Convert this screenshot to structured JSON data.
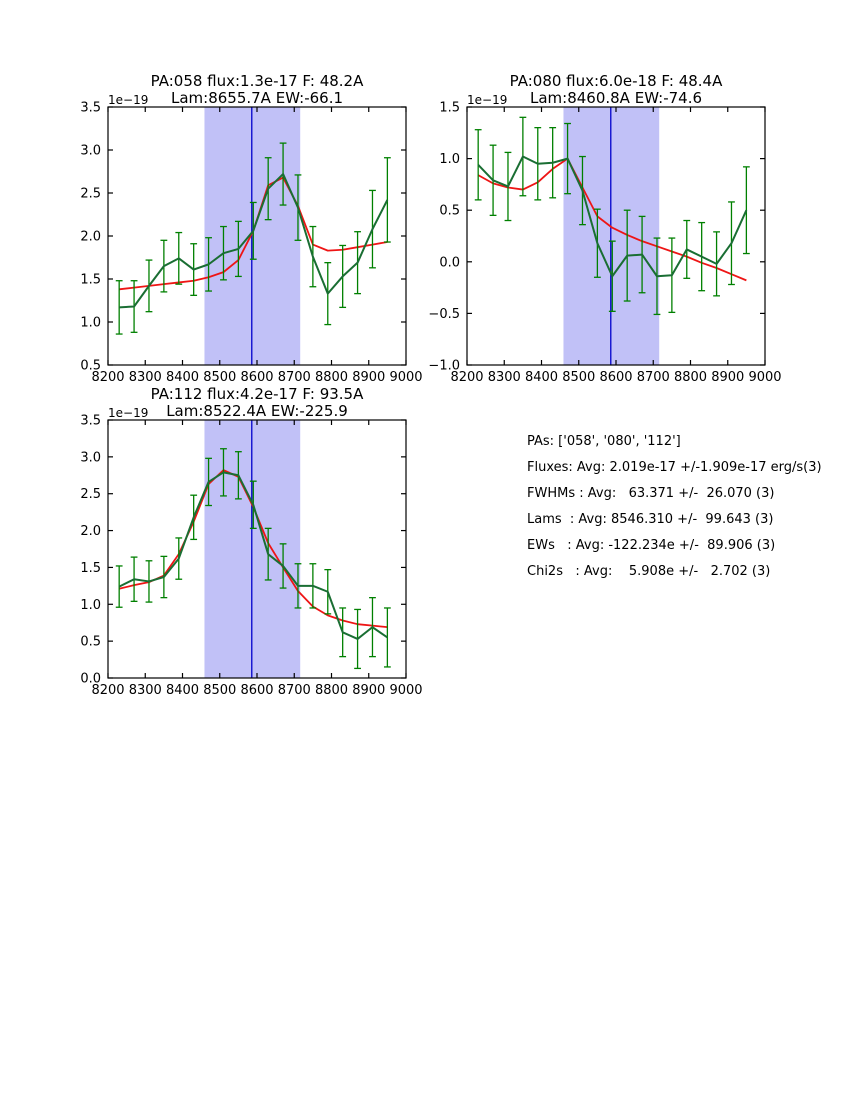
{
  "figure": {
    "background": "#ffffff"
  },
  "colors": {
    "spectrum_line": "#1a6e33",
    "error_bar": "#008000",
    "model_line": "#ee1515",
    "center_line": "#0000cc",
    "band_fill": "#c1c1f7",
    "axis": "#000000"
  },
  "chart_data": [
    {
      "type": "line",
      "title_line1": "PA:058 flux:1.3e-17 F: 48.2A",
      "title_line2": "Lam:8655.7A EW:-66.1",
      "y_offset_label": "1e−19",
      "xlim": [
        8200,
        9000
      ],
      "ylim": [
        0.5,
        3.5
      ],
      "grid": false,
      "legend": "none",
      "xticks": [
        8200,
        8300,
        8400,
        8500,
        8600,
        8700,
        8800,
        8900,
        9000
      ],
      "xtick_labels": [
        "8200",
        "8300",
        "8400",
        "8500",
        "8600",
        "8700",
        "8800",
        "8900",
        "9000"
      ],
      "yticks": [
        0.5,
        1.0,
        1.5,
        2.0,
        2.5,
        3.0,
        3.5
      ],
      "ytick_labels": [
        "0.5",
        "1.0",
        "1.5",
        "2.0",
        "2.5",
        "3.0",
        "3.5"
      ],
      "band_x": [
        8459,
        8716
      ],
      "vline_x": 8586,
      "x": [
        8230,
        8270,
        8310,
        8350,
        8390,
        8430,
        8470,
        8510,
        8550,
        8590,
        8630,
        8670,
        8710,
        8750,
        8790,
        8830,
        8870,
        8910,
        8950
      ],
      "series": [
        {
          "name": "spectrum",
          "color_key": "spectrum_line",
          "values": [
            1.17,
            1.18,
            1.42,
            1.65,
            1.74,
            1.61,
            1.67,
            1.8,
            1.85,
            2.06,
            2.55,
            2.72,
            2.33,
            1.76,
            1.33,
            1.53,
            1.69,
            2.08,
            2.42
          ],
          "yerr": [
            0.31,
            0.3,
            0.3,
            0.3,
            0.3,
            0.3,
            0.31,
            0.31,
            0.32,
            0.33,
            0.36,
            0.36,
            0.38,
            0.35,
            0.36,
            0.36,
            0.36,
            0.45,
            0.49
          ]
        },
        {
          "name": "model_fit",
          "color_key": "model_line",
          "values": [
            1.38,
            1.4,
            1.42,
            1.44,
            1.46,
            1.48,
            1.52,
            1.58,
            1.72,
            2.06,
            2.59,
            2.68,
            2.35,
            1.9,
            1.83,
            1.84,
            1.87,
            1.9,
            1.93
          ]
        }
      ]
    },
    {
      "type": "line",
      "title_line1": "PA:080 flux:6.0e-18 F: 48.4A",
      "title_line2": "Lam:8460.8A EW:-74.6",
      "y_offset_label": "1e−19",
      "xlim": [
        8200,
        9000
      ],
      "ylim": [
        -1.0,
        1.5
      ],
      "grid": false,
      "legend": "none",
      "xticks": [
        8200,
        8300,
        8400,
        8500,
        8600,
        8700,
        8800,
        8900,
        9000
      ],
      "xtick_labels": [
        "8200",
        "8300",
        "8400",
        "8500",
        "8600",
        "8700",
        "8800",
        "8900",
        "9000"
      ],
      "yticks": [
        -1.0,
        -0.5,
        0.0,
        0.5,
        1.0,
        1.5
      ],
      "ytick_labels": [
        "−1.0",
        "−0.5",
        "0.0",
        "0.5",
        "1.0",
        "1.5"
      ],
      "band_x": [
        8459,
        8716
      ],
      "vline_x": 8586,
      "x": [
        8230,
        8270,
        8310,
        8350,
        8390,
        8430,
        8470,
        8510,
        8550,
        8590,
        8630,
        8670,
        8710,
        8750,
        8790,
        8830,
        8870,
        8910,
        8950
      ],
      "series": [
        {
          "name": "spectrum",
          "color_key": "spectrum_line",
          "values": [
            0.94,
            0.79,
            0.73,
            1.02,
            0.95,
            0.96,
            1.0,
            0.69,
            0.18,
            -0.14,
            0.06,
            0.07,
            -0.14,
            -0.13,
            0.12,
            0.05,
            -0.02,
            0.18,
            0.5
          ],
          "yerr": [
            0.34,
            0.34,
            0.33,
            0.38,
            0.35,
            0.34,
            0.34,
            0.33,
            0.33,
            0.34,
            0.44,
            0.37,
            0.37,
            0.36,
            0.28,
            0.33,
            0.31,
            0.4,
            0.42
          ]
        },
        {
          "name": "model_fit",
          "color_key": "model_line",
          "values": [
            0.84,
            0.76,
            0.72,
            0.7,
            0.77,
            0.9,
            1.0,
            0.72,
            0.44,
            0.33,
            0.26,
            0.2,
            0.15,
            0.1,
            0.05,
            -0.01,
            -0.06,
            -0.12,
            -0.18
          ]
        }
      ]
    },
    {
      "type": "line",
      "title_line1": "PA:112 flux:4.2e-17 F: 93.5A",
      "title_line2": "Lam:8522.4A EW:-225.9",
      "y_offset_label": "1e−19",
      "xlim": [
        8200,
        9000
      ],
      "ylim": [
        0.0,
        3.5
      ],
      "grid": false,
      "legend": "none",
      "xticks": [
        8200,
        8300,
        8400,
        8500,
        8600,
        8700,
        8800,
        8900,
        9000
      ],
      "xtick_labels": [
        "8200",
        "8300",
        "8400",
        "8500",
        "8600",
        "8700",
        "8800",
        "8900",
        "9000"
      ],
      "yticks": [
        0.0,
        0.5,
        1.0,
        1.5,
        2.0,
        2.5,
        3.0,
        3.5
      ],
      "ytick_labels": [
        "0.0",
        "0.5",
        "1.0",
        "1.5",
        "2.0",
        "2.5",
        "3.0",
        "3.5"
      ],
      "band_x": [
        8459,
        8716
      ],
      "vline_x": 8586,
      "x": [
        8230,
        8270,
        8310,
        8350,
        8390,
        8430,
        8470,
        8510,
        8550,
        8590,
        8630,
        8670,
        8710,
        8750,
        8790,
        8830,
        8870,
        8910,
        8950
      ],
      "series": [
        {
          "name": "spectrum",
          "color_key": "spectrum_line",
          "values": [
            1.24,
            1.34,
            1.31,
            1.37,
            1.62,
            2.18,
            2.66,
            2.79,
            2.75,
            2.35,
            1.68,
            1.52,
            1.25,
            1.25,
            1.17,
            0.62,
            0.53,
            0.69,
            0.55
          ],
          "yerr": [
            0.28,
            0.3,
            0.28,
            0.28,
            0.28,
            0.3,
            0.32,
            0.32,
            0.32,
            0.32,
            0.35,
            0.3,
            0.3,
            0.3,
            0.3,
            0.33,
            0.4,
            0.4,
            0.4
          ]
        },
        {
          "name": "model_fit",
          "color_key": "model_line",
          "values": [
            1.21,
            1.26,
            1.3,
            1.39,
            1.68,
            2.12,
            2.63,
            2.82,
            2.73,
            2.32,
            1.83,
            1.5,
            1.18,
            0.97,
            0.85,
            0.78,
            0.73,
            0.71,
            0.69
          ]
        }
      ]
    }
  ],
  "stats_panel": {
    "lines": [
      "PAs: ['058', '080', '112']",
      "Fluxes: Avg: 2.019e-17 +/-1.909e-17 erg/s(3)",
      "FWHMs : Avg:   63.371 +/-  26.070 (3)",
      "Lams  : Avg: 8546.310 +/-  99.643 (3)",
      "EWs   : Avg: -122.234e +/-  89.906 (3)",
      "Chi2s   : Avg:    5.908e +/-   2.702 (3)"
    ]
  }
}
